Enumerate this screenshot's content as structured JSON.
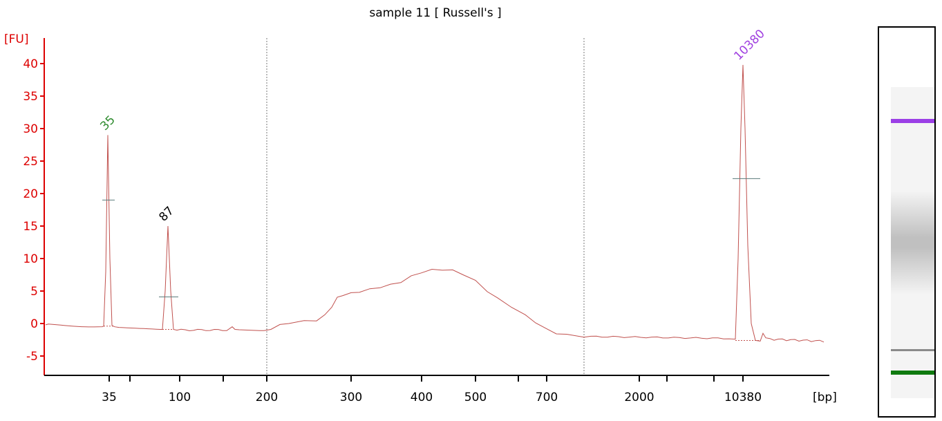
{
  "chart_data": {
    "type": "line",
    "title": "sample 11  [ Russell's ]",
    "ylabel": "[FU]",
    "xlabel": "[bp]",
    "ylim": [
      -8,
      45
    ],
    "yticks": [
      -5,
      0,
      5,
      10,
      15,
      20,
      25,
      30,
      35,
      40
    ],
    "xtick_labels": [
      "35",
      "100",
      "200",
      "300",
      "400",
      "500",
      "700",
      "2000",
      "10380"
    ],
    "peaks": [
      {
        "label": "35",
        "value": 29.0,
        "color": "#2e8b2e"
      },
      {
        "label": "87",
        "value": 15.0,
        "color": "#000000"
      },
      {
        "label": "10380",
        "value": 39.8,
        "color": "#a040e0"
      }
    ],
    "series": [
      {
        "color": "#c0504d",
        "x": [
          "35",
          "87",
          "200",
          "300",
          "400",
          "500",
          "700",
          "2000",
          "10380"
        ],
        "y": [
          29.0,
          15.0,
          -1.0,
          4.5,
          8.3,
          6.5,
          -2.0,
          -2.5,
          39.8
        ]
      }
    ],
    "axis_color": "#dd0000"
  },
  "gel": {
    "bands": [
      {
        "color": "#9b3fe6",
        "kind": "upper-marker"
      },
      {
        "color": "#888888",
        "kind": "smear"
      },
      {
        "color": "#8a8a8a",
        "kind": "peak-87"
      },
      {
        "color": "#0f7a0f",
        "kind": "lower-marker"
      }
    ]
  }
}
